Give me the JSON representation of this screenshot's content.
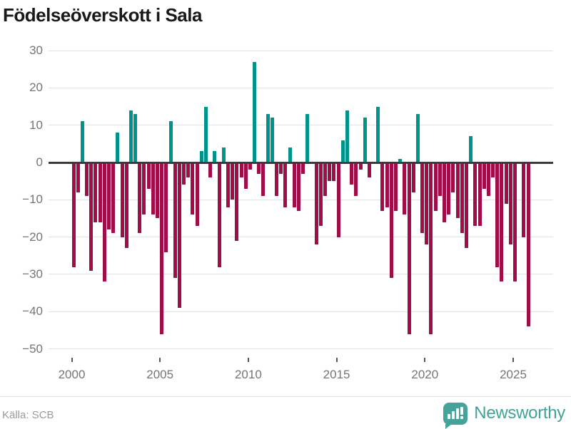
{
  "header": {
    "title": "Födelseöverskott i Sala"
  },
  "footer": {
    "source": "Källa: SCB",
    "brand_name": "Newsworthy"
  },
  "chart_data": {
    "type": "bar",
    "title": "Födelseöverskott i Sala",
    "frequency": "quarterly",
    "x_start": "2000-Q1",
    "x_end": "2025-Q4",
    "values": [
      -28,
      -8,
      11,
      -9,
      -29,
      -16,
      -16,
      -32,
      -18,
      -19,
      8,
      -20,
      -23,
      14,
      13,
      -19,
      -14,
      -7,
      -14,
      -15,
      -46,
      -24,
      11,
      -31,
      -39,
      -6,
      -4,
      -14,
      -17,
      3,
      15,
      -4,
      3,
      -28,
      4,
      -12,
      -10,
      -21,
      -4,
      -7,
      -2,
      27,
      -3,
      -9,
      13,
      12,
      -9,
      -3,
      -12,
      4,
      -12,
      -13,
      -3,
      13,
      0,
      -22,
      -17,
      -9,
      -5,
      -5,
      -20,
      6,
      14,
      -6,
      -9,
      -2,
      12,
      -4,
      0,
      15,
      -13,
      -12,
      -31,
      -13,
      1,
      -14,
      -46,
      -8,
      13,
      -19,
      -22,
      -46,
      -13,
      -9,
      -16,
      -14,
      -8,
      -15,
      -19,
      -23,
      7,
      -17,
      -17,
      -7,
      -9,
      -4,
      -28,
      -32,
      -11,
      -22,
      -32,
      0,
      -20,
      -44
    ],
    "ylim": [
      -50,
      30
    ],
    "yticks": [
      30,
      20,
      10,
      0,
      -10,
      -20,
      -30,
      -40,
      -50
    ],
    "xtick_years": [
      2000,
      2005,
      2010,
      2015,
      2020,
      2025
    ],
    "colors": {
      "positive": "#00938c",
      "negative": "#a00d49"
    },
    "grid": true,
    "legend": false
  }
}
